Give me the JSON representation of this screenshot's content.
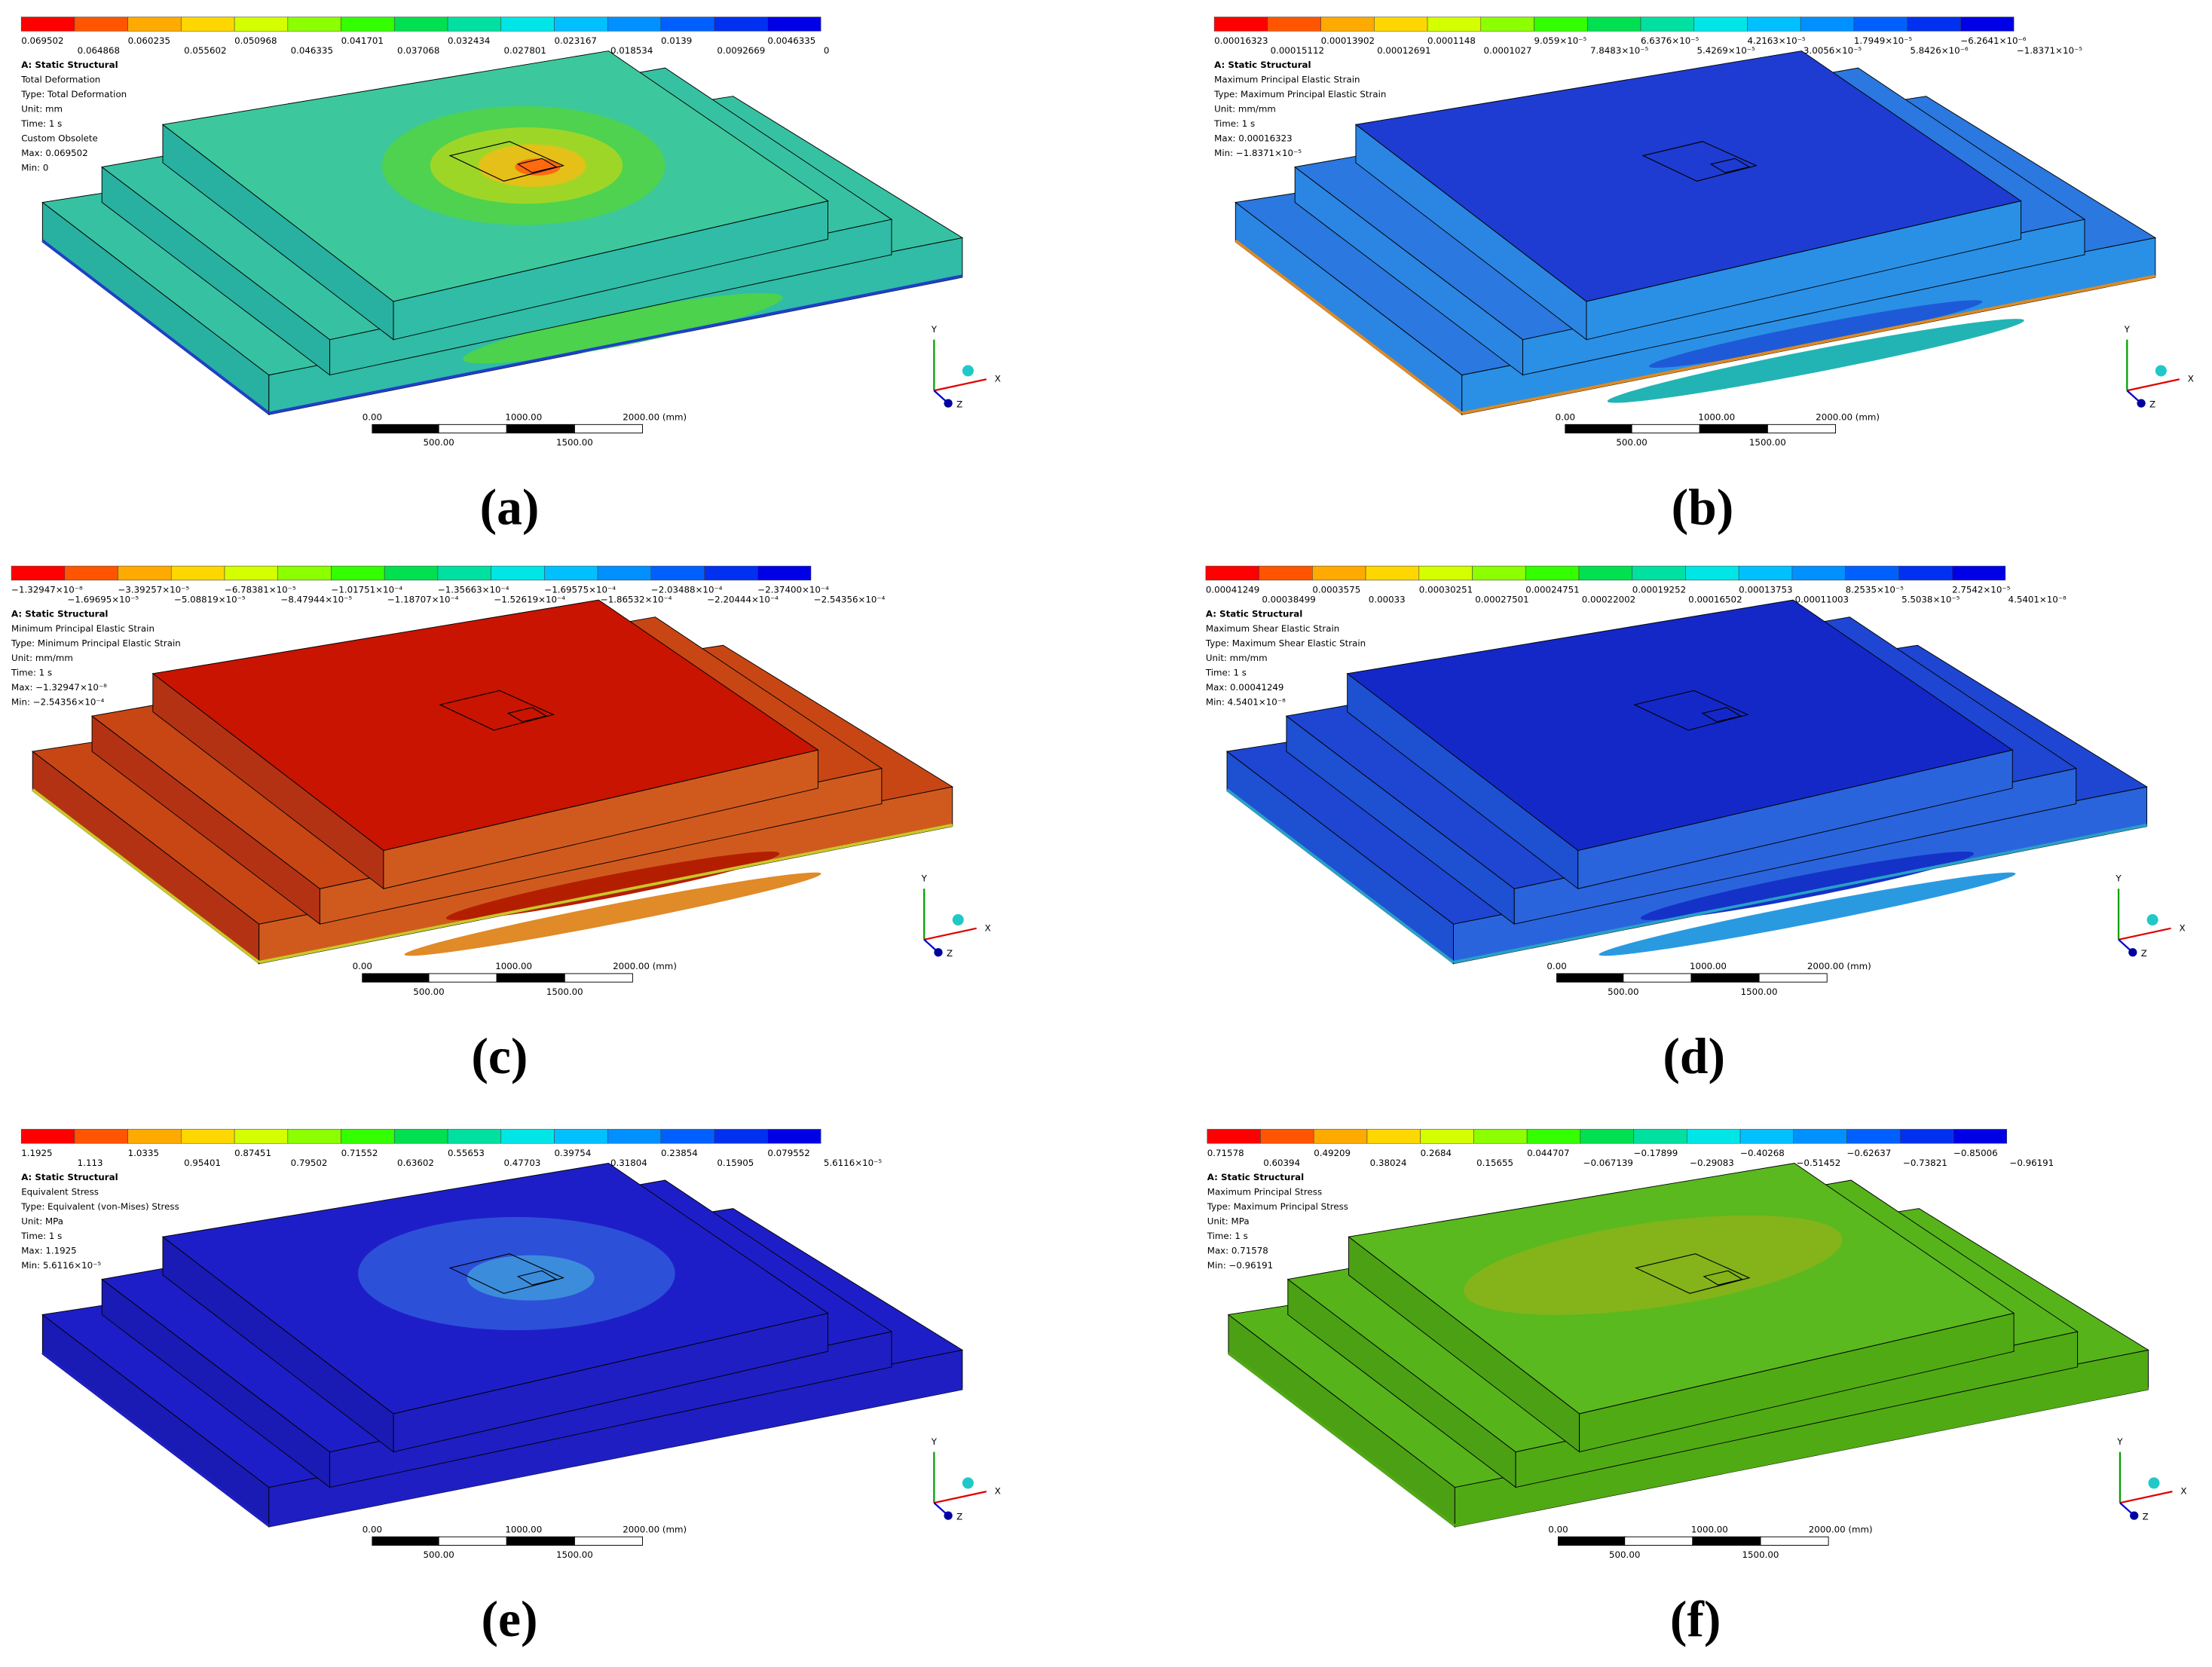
{
  "legend_colors": [
    "#ff0000",
    "#ff5500",
    "#ffaa00",
    "#ffd700",
    "#d4ff00",
    "#8cff00",
    "#33ff00",
    "#00e050",
    "#00e0a0",
    "#00e6e6",
    "#00c0ff",
    "#0090ff",
    "#0060ff",
    "#0030f0",
    "#0000e6"
  ],
  "panels": [
    {
      "caption": "(a)",
      "legend_top": [
        "0.069502",
        "0.060235",
        "0.050968",
        "0.041701",
        "0.032434",
        "0.023167",
        "0.0139",
        "0.0046335"
      ],
      "legend_bottom": [
        "0.064868",
        "0.055602",
        "0.046335",
        "0.037068",
        "0.027801",
        "0.018534",
        "0.0092669",
        "0"
      ],
      "info": [
        "A: Static Structural",
        "Total Deformation",
        "Type: Total Deformation",
        "Unit: mm",
        "Time: 1 s",
        "Custom Obsolete",
        "Max: 0.069502",
        "Min: 0"
      ],
      "scale_top": [
        "0.00",
        "1000.00",
        "2000.00 (mm)"
      ],
      "scale_bottom": [
        "500.00",
        "1500.00"
      ],
      "triad": [
        "Y",
        "X",
        "Z"
      ]
    },
    {
      "caption": "(b)",
      "legend_top": [
        "0.00016323",
        "0.00013902",
        "0.0001148",
        "9.059×10⁻⁵",
        "6.6376×10⁻⁵",
        "4.2163×10⁻⁵",
        "1.7949×10⁻⁵",
        "−6.2641×10⁻⁶"
      ],
      "legend_bottom": [
        "0.00015112",
        "0.00012691",
        "0.0001027",
        "7.8483×10⁻⁵",
        "5.4269×10⁻⁵",
        "3.0056×10⁻⁵",
        "5.8426×10⁻⁶",
        "−1.8371×10⁻⁵"
      ],
      "info": [
        "A: Static Structural",
        "Maximum Principal Elastic Strain",
        "Type: Maximum Principal Elastic Strain",
        "Unit: mm/mm",
        "Time: 1 s",
        "Max: 0.00016323",
        "Min: −1.8371×10⁻⁵"
      ],
      "scale_top": [
        "0.00",
        "1000.00",
        "2000.00 (mm)"
      ],
      "scale_bottom": [
        "500.00",
        "1500.00"
      ],
      "triad": [
        "Y",
        "X",
        "Z"
      ]
    },
    {
      "caption": "(c)",
      "legend_top": [
        "−1.32947×10⁻⁸",
        "−3.39257×10⁻⁵",
        "−6.78381×10⁻⁵",
        "−1.01751×10⁻⁴",
        "−1.35663×10⁻⁴",
        "−1.69575×10⁻⁴",
        "−2.03488×10⁻⁴",
        "−2.37400×10⁻⁴"
      ],
      "legend_bottom": [
        "−1.69695×10⁻⁵",
        "−5.08819×10⁻⁵",
        "−8.47944×10⁻⁵",
        "−1.18707×10⁻⁴",
        "−1.52619×10⁻⁴",
        "−1.86532×10⁻⁴",
        "−2.20444×10⁻⁴",
        "−2.54356×10⁻⁴"
      ],
      "info": [
        "A: Static Structural",
        "Minimum Principal Elastic Strain",
        "Type: Minimum Principal Elastic Strain",
        "Unit: mm/mm",
        "Time: 1 s",
        "Max: −1.32947×10⁻⁸",
        "Min: −2.54356×10⁻⁴"
      ],
      "scale_top": [
        "0.00",
        "1000.00",
        "2000.00 (mm)"
      ],
      "scale_bottom": [
        "500.00",
        "1500.00"
      ],
      "triad": [
        "Y",
        "X",
        "Z"
      ]
    },
    {
      "caption": "(d)",
      "legend_top": [
        "0.00041249",
        "0.0003575",
        "0.00030251",
        "0.00024751",
        "0.00019252",
        "0.00013753",
        "8.2535×10⁻⁵",
        "2.7542×10⁻⁵"
      ],
      "legend_bottom": [
        "0.00038499",
        "0.00033",
        "0.00027501",
        "0.00022002",
        "0.00016502",
        "0.00011003",
        "5.5038×10⁻⁵",
        "4.5401×10⁻⁸"
      ],
      "info": [
        "A: Static Structural",
        "Maximum Shear Elastic Strain",
        "Type: Maximum Shear Elastic Strain",
        "Unit: mm/mm",
        "Time: 1 s",
        "Max: 0.00041249",
        "Min: 4.5401×10⁻⁸"
      ],
      "scale_top": [
        "0.00",
        "1000.00",
        "2000.00 (mm)"
      ],
      "scale_bottom": [
        "500.00",
        "1500.00"
      ],
      "triad": [
        "Y",
        "X",
        "Z"
      ]
    },
    {
      "caption": "(e)",
      "legend_top": [
        "1.1925",
        "1.0335",
        "0.87451",
        "0.71552",
        "0.55653",
        "0.39754",
        "0.23854",
        "0.079552"
      ],
      "legend_bottom": [
        "1.113",
        "0.95401",
        "0.79502",
        "0.63602",
        "0.47703",
        "0.31804",
        "0.15905",
        "5.6116×10⁻⁵"
      ],
      "info": [
        "A: Static Structural",
        "Equivalent Stress",
        "Type: Equivalent (von-Mises) Stress",
        "Unit: MPa",
        "Time: 1 s",
        "Max: 1.1925",
        "Min: 5.6116×10⁻⁵"
      ],
      "scale_top": [
        "0.00",
        "1000.00",
        "2000.00 (mm)"
      ],
      "scale_bottom": [
        "500.00",
        "1500.00"
      ],
      "triad": [
        "Y",
        "X",
        "Z"
      ]
    },
    {
      "caption": "(f)",
      "legend_top": [
        "0.71578",
        "0.49209",
        "0.2684",
        "0.044707",
        "−0.17899",
        "−0.40268",
        "−0.62637",
        "−0.85006"
      ],
      "legend_bottom": [
        "0.60394",
        "0.38024",
        "0.15655",
        "−0.067139",
        "−0.29083",
        "−0.51452",
        "−0.73821",
        "−0.96191"
      ],
      "info": [
        "A: Static Structural",
        "Maximum Principal Stress",
        "Type: Maximum Principal Stress",
        "Unit: MPa",
        "Time: 1 s",
        "Max: 0.71578",
        "Min: −0.96191"
      ],
      "scale_top": [
        "0.00",
        "1000.00",
        "2000.00 (mm)"
      ],
      "scale_bottom": [
        "500.00",
        "1500.00"
      ],
      "triad": [
        "Y",
        "X",
        "Z"
      ]
    }
  ]
}
